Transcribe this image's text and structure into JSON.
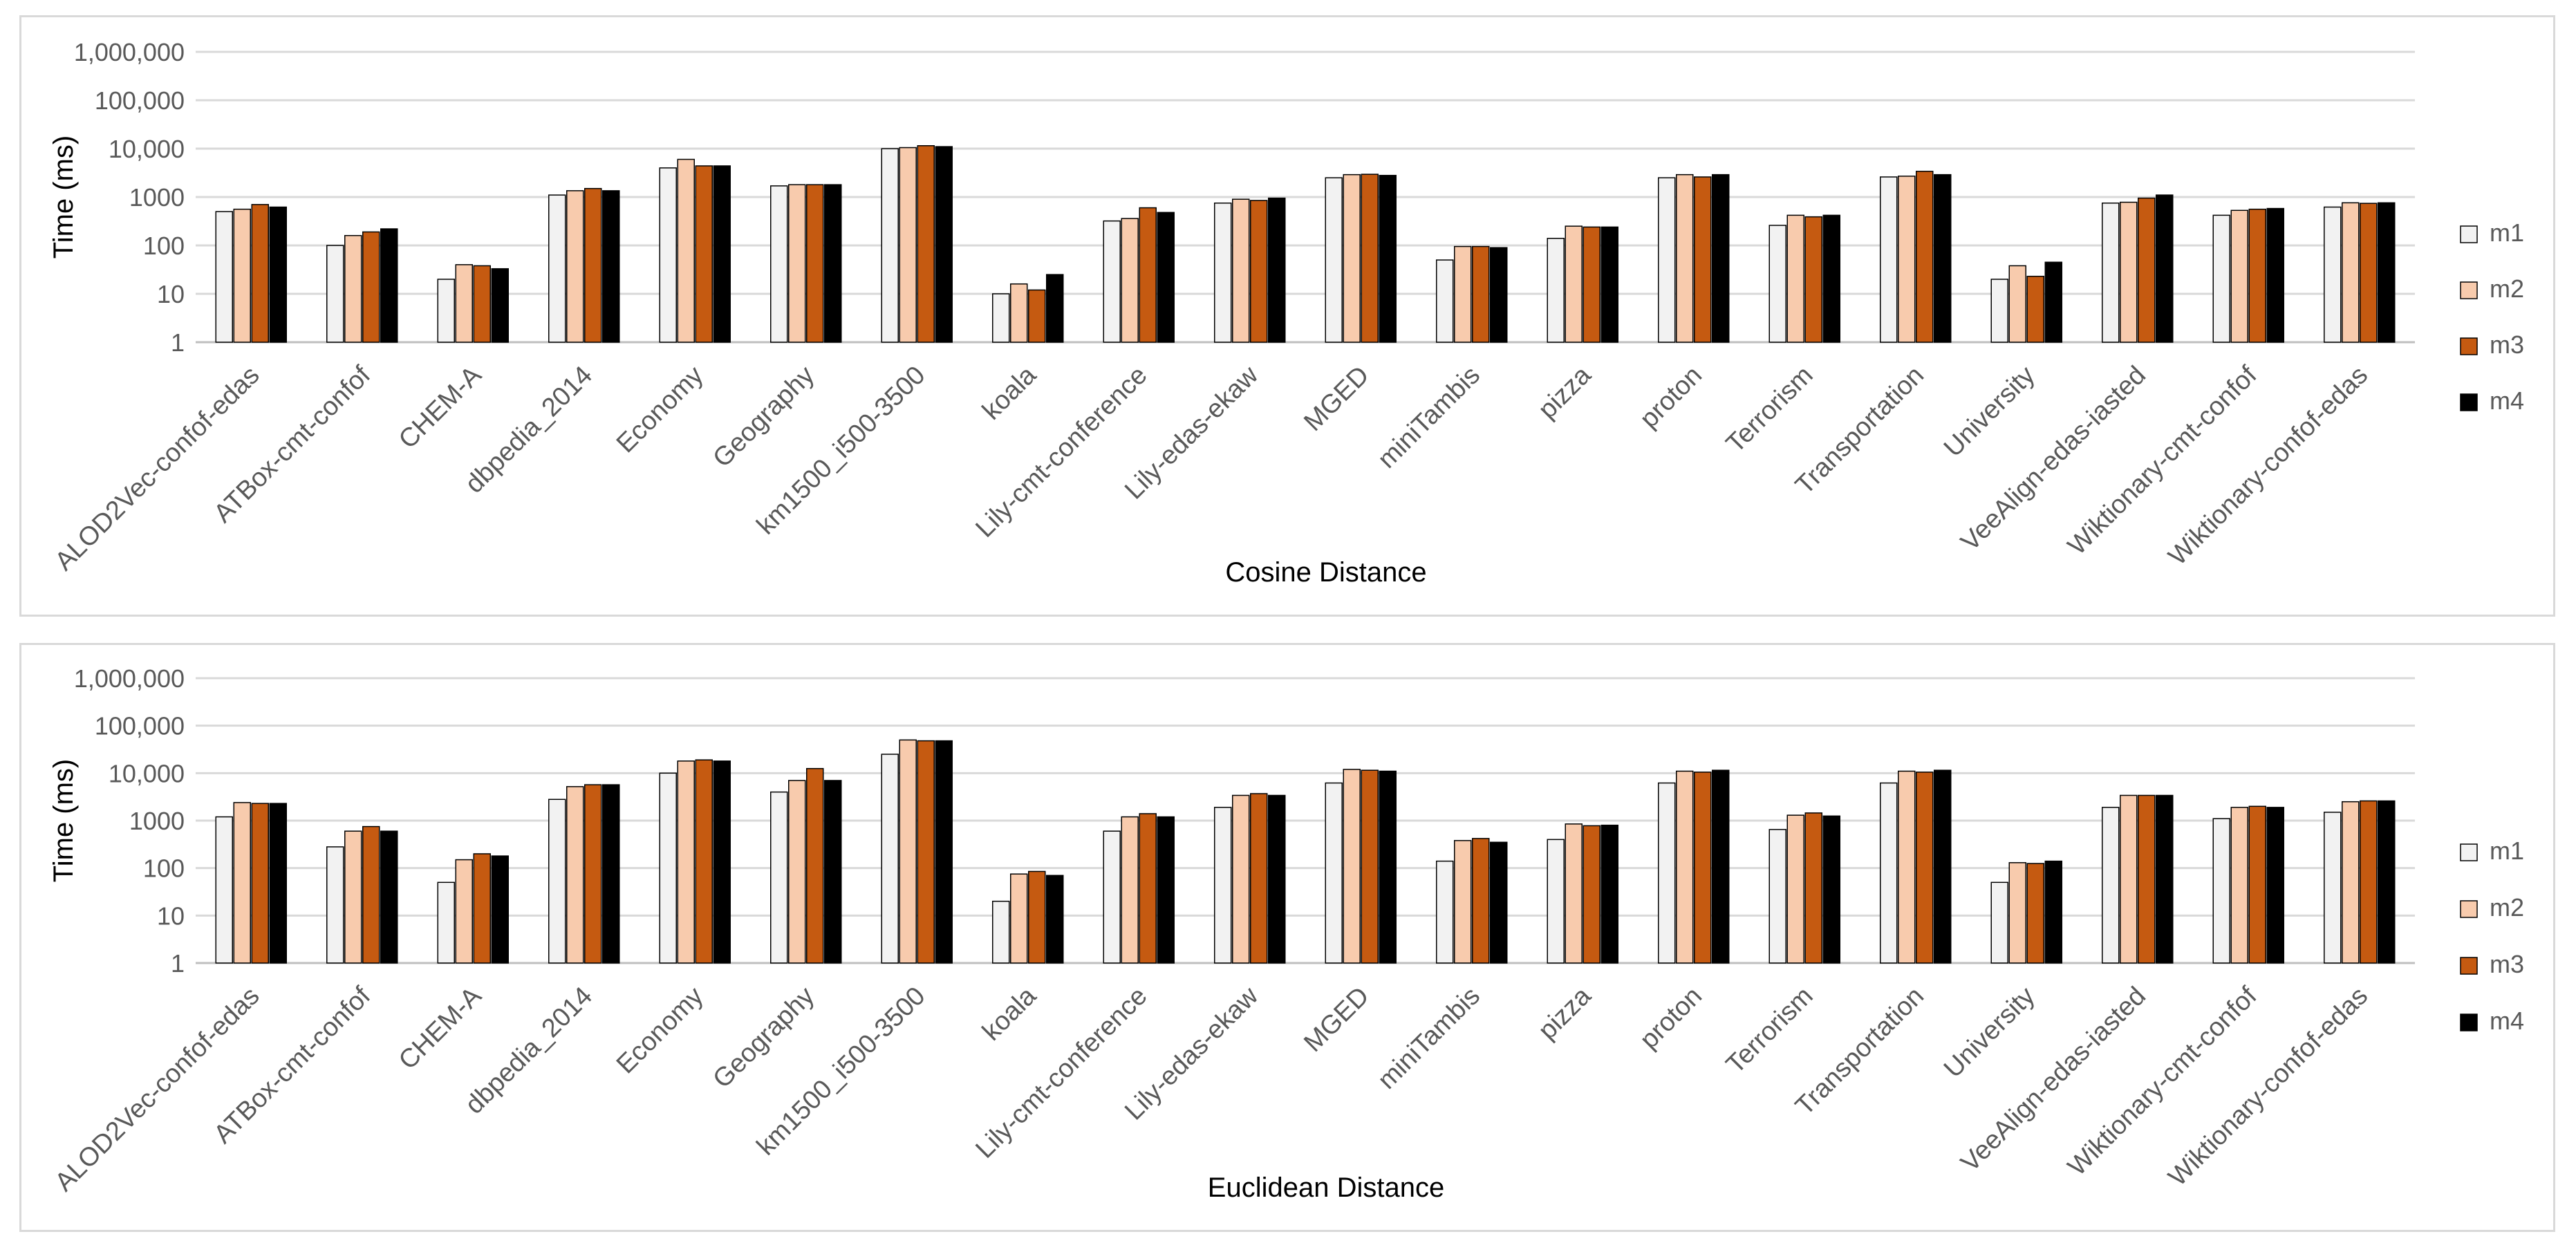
{
  "chart_data": [
    {
      "type": "bar",
      "title": "",
      "xlabel": "Cosine Distance",
      "ylabel": "Time (ms)",
      "yscale": "log",
      "ylim": [
        1,
        1000000
      ],
      "yticks": [
        1,
        10,
        100,
        1000,
        10000,
        100000,
        1000000
      ],
      "ytick_labels": [
        "1",
        "10",
        "100",
        "1000",
        "10,000",
        "100,000",
        "1,000,000"
      ],
      "grid": true,
      "legend": "right",
      "categories": [
        "ALOD2Vec-confof-edas",
        "ATBox-cmt-confof",
        "CHEM-A",
        "dbpedia_2014",
        "Economy",
        "Geography",
        "km1500_i500-3500",
        "koala",
        "Lily-cmt-conference",
        "Lily-edas-ekaw",
        "MGED",
        "miniTambis",
        "pizza",
        "proton",
        "Terrorism",
        "Transportation",
        "University",
        "VeeAlign-edas-iasted",
        "Wiktionary-cmt-confof",
        "Wiktionary-confof-edas"
      ],
      "series": [
        {
          "name": "m1",
          "color": "#f2f2f2",
          "values": [
            500,
            100,
            20,
            1100,
            4000,
            1700,
            10000,
            10,
            320,
            750,
            2500,
            50,
            140,
            2500,
            260,
            2600,
            20,
            750,
            420,
            620
          ]
        },
        {
          "name": "m2",
          "color": "#f8cbad",
          "values": [
            560,
            160,
            40,
            1350,
            6000,
            1800,
            10500,
            16,
            360,
            900,
            2900,
            95,
            250,
            2900,
            420,
            2700,
            38,
            780,
            530,
            760
          ]
        },
        {
          "name": "m3",
          "color": "#c55a11",
          "values": [
            700,
            190,
            38,
            1500,
            4400,
            1800,
            11500,
            12,
            600,
            850,
            2950,
            95,
            240,
            2600,
            390,
            3400,
            23,
            950,
            560,
            740
          ]
        },
        {
          "name": "m4",
          "color": "#000000",
          "values": [
            620,
            220,
            33,
            1350,
            4400,
            1800,
            11000,
            25,
            480,
            950,
            2800,
            90,
            240,
            2900,
            420,
            2900,
            45,
            1100,
            580,
            760
          ]
        }
      ]
    },
    {
      "type": "bar",
      "title": "",
      "xlabel": "Euclidean Distance",
      "ylabel": "Time (ms)",
      "yscale": "log",
      "ylim": [
        1,
        1000000
      ],
      "yticks": [
        1,
        10,
        100,
        1000,
        10000,
        100000,
        1000000
      ],
      "ytick_labels": [
        "1",
        "10",
        "100",
        "1000",
        "10,000",
        "100,000",
        "1,000,000"
      ],
      "grid": true,
      "legend": "right",
      "categories": [
        "ALOD2Vec-confof-edas",
        "ATBox-cmt-confof",
        "CHEM-A",
        "dbpedia_2014",
        "Economy",
        "Geography",
        "km1500_i500-3500",
        "koala",
        "Lily-cmt-conference",
        "Lily-edas-ekaw",
        "MGED",
        "miniTambis",
        "pizza",
        "proton",
        "Terrorism",
        "Transportation",
        "University",
        "VeeAlign-edas-iasted",
        "Wiktionary-cmt-confof",
        "Wiktionary-confof-edas"
      ],
      "series": [
        {
          "name": "m1",
          "color": "#f2f2f2",
          "values": [
            1200,
            280,
            50,
            2800,
            10000,
            4000,
            25000,
            20,
            600,
            1900,
            6200,
            140,
            400,
            6200,
            650,
            6200,
            50,
            1900,
            1100,
            1500
          ]
        },
        {
          "name": "m2",
          "color": "#f8cbad",
          "values": [
            2400,
            600,
            150,
            5200,
            18000,
            7000,
            50000,
            75,
            1200,
            3400,
            12000,
            380,
            850,
            11000,
            1300,
            11000,
            130,
            3400,
            1900,
            2500
          ]
        },
        {
          "name": "m3",
          "color": "#c55a11",
          "values": [
            2300,
            750,
            200,
            5700,
            19000,
            12500,
            48000,
            85,
            1400,
            3700,
            11500,
            420,
            780,
            10500,
            1450,
            10500,
            125,
            3400,
            2000,
            2600
          ]
        },
        {
          "name": "m4",
          "color": "#000000",
          "values": [
            2300,
            600,
            180,
            5700,
            18000,
            7000,
            48000,
            70,
            1200,
            3400,
            11000,
            350,
            800,
            11500,
            1250,
            11500,
            140,
            3400,
            1900,
            2600
          ]
        }
      ]
    }
  ]
}
